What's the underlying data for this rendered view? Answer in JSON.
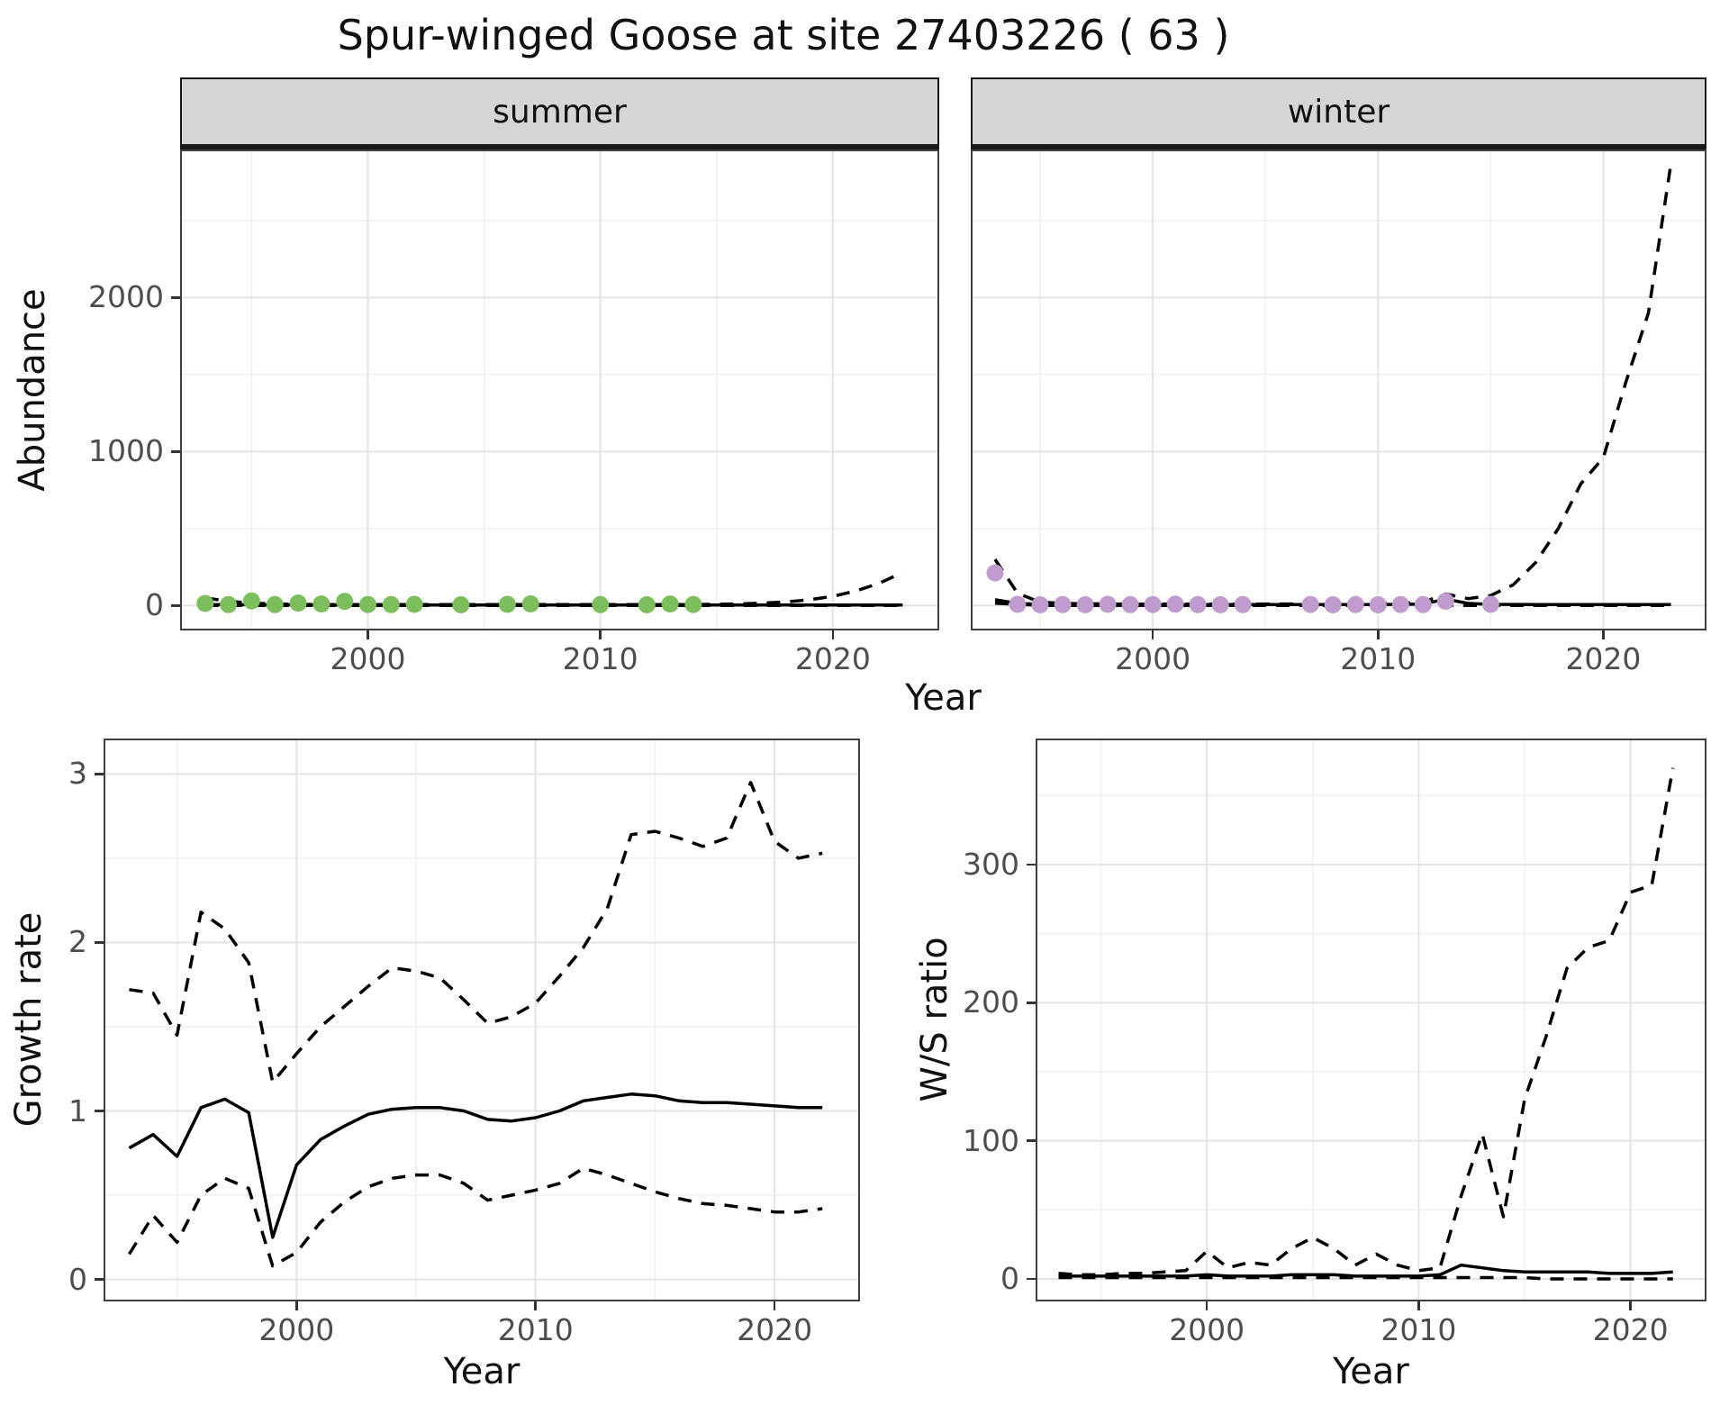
{
  "title": "Spur-winged Goose at site 27403226 ( 63 )",
  "chart_data": [
    {
      "id": "abundance-summer",
      "panel": "panel-summer",
      "type": "line",
      "facet_label": "summer",
      "xlabel": "Year",
      "ylabel": "Abundance",
      "xlim": [
        1992,
        2024.5
      ],
      "ylim": [
        -150,
        2950
      ],
      "xticks": [
        2000,
        2010,
        2020
      ],
      "yticks": [
        0,
        1000,
        2000
      ],
      "xminor": [
        1995,
        2005,
        2015
      ],
      "yminor": [
        500,
        1500,
        2500
      ],
      "show_yticklabels": true,
      "grid": true,
      "points": {
        "name": "observed-count",
        "color": "#7cbe5c",
        "x": [
          1993,
          1994,
          1995,
          1996,
          1997,
          1998,
          1999,
          2000,
          2001,
          2002,
          2004,
          2006,
          2007,
          2010,
          2012,
          2013,
          2014
        ],
        "y": [
          14,
          6,
          30,
          6,
          16,
          10,
          27,
          7,
          6,
          8,
          5,
          8,
          11,
          6,
          5,
          10,
          7
        ]
      },
      "series": [
        {
          "name": "model-fit",
          "style": "solid",
          "color": "#000000",
          "x": [
            1993,
            1998,
            2003,
            2008,
            2013,
            2018,
            2023
          ],
          "y": [
            6,
            3,
            3,
            3,
            3,
            3,
            4
          ]
        },
        {
          "name": "upper-ci",
          "style": "dashed",
          "color": "#000000",
          "x": [
            1993,
            1994,
            1995,
            1996,
            1997,
            1998,
            2000,
            2002,
            2004,
            2006,
            2008,
            2010,
            2012,
            2014,
            2015,
            2016,
            2017,
            2018,
            2019,
            2020,
            2021,
            2022,
            2023
          ],
          "y": [
            50,
            28,
            16,
            10,
            8,
            7,
            6,
            6,
            6,
            6,
            6,
            6,
            6,
            7,
            8,
            11,
            16,
            24,
            38,
            60,
            95,
            145,
            215
          ]
        },
        {
          "name": "lower-ci",
          "style": "dashed",
          "color": "#000000",
          "x": [
            1993,
            2000,
            2010,
            2020,
            2023
          ],
          "y": [
            1,
            0.5,
            0.5,
            0.5,
            0.5
          ]
        }
      ]
    },
    {
      "id": "abundance-winter",
      "panel": "panel-winter",
      "type": "line",
      "facet_label": "winter",
      "xlabel": "Year",
      "ylabel": "Abundance",
      "xlim": [
        1992,
        2024.5
      ],
      "ylim": [
        -150,
        2950
      ],
      "xticks": [
        2000,
        2010,
        2020
      ],
      "yticks": [
        0,
        1000,
        2000
      ],
      "xminor": [
        1995,
        2005,
        2015
      ],
      "yminor": [
        500,
        1500,
        2500
      ],
      "show_yticklabels": false,
      "grid": true,
      "points": {
        "name": "observed-count",
        "color": "#bf9bce",
        "x": [
          1993,
          1994,
          1995,
          1996,
          1997,
          1998,
          1999,
          2000,
          2001,
          2002,
          2003,
          2004,
          2007,
          2008,
          2009,
          2010,
          2011,
          2012,
          2013,
          2015
        ],
        "y": [
          212,
          8,
          5,
          6,
          5,
          8,
          6,
          7,
          9,
          6,
          5,
          6,
          7,
          5,
          6,
          5,
          7,
          6,
          28,
          8
        ]
      },
      "series": [
        {
          "name": "model-fit",
          "style": "solid",
          "color": "#000000",
          "x": [
            1993,
            1994,
            1995,
            1997,
            2000,
            2005,
            2010,
            2012,
            2013,
            2014,
            2015,
            2017,
            2020,
            2023
          ],
          "y": [
            38,
            14,
            8,
            6,
            6,
            6,
            7,
            9,
            42,
            14,
            8,
            6,
            6,
            6
          ]
        },
        {
          "name": "upper-ci",
          "style": "dashed",
          "color": "#000000",
          "x": [
            1993,
            1994,
            1995,
            1996,
            1998,
            2000,
            2003,
            2006,
            2009,
            2011,
            2012,
            2013,
            2014,
            2015,
            2016,
            2017,
            2018,
            2019,
            2020,
            2021,
            2022,
            2023
          ],
          "y": [
            300,
            80,
            22,
            14,
            10,
            9,
            9,
            10,
            12,
            14,
            22,
            75,
            45,
            65,
            135,
            280,
            500,
            790,
            960,
            1450,
            1900,
            2870
          ]
        },
        {
          "name": "lower-ci",
          "style": "dashed",
          "color": "#000000",
          "x": [
            1993,
            1995,
            2000,
            2010,
            2020,
            2023
          ],
          "y": [
            15,
            1,
            0.5,
            0.5,
            0.5,
            0.5
          ]
        }
      ]
    },
    {
      "id": "growth-rate",
      "panel": "panel-growth",
      "type": "line",
      "xlabel": "Year",
      "ylabel": "Growth rate",
      "xlim": [
        1992,
        2023.5
      ],
      "ylim": [
        -0.12,
        3.2
      ],
      "xticks": [
        2000,
        2010,
        2020
      ],
      "yticks": [
        0,
        1,
        2,
        3
      ],
      "xminor": [
        1995,
        2005,
        2015
      ],
      "yminor": [
        0.5,
        1.5,
        2.5
      ],
      "show_yticklabels": true,
      "grid": true,
      "series": [
        {
          "name": "median",
          "style": "solid",
          "color": "#000000",
          "x": [
            1993,
            1994,
            1995,
            1996,
            1997,
            1998,
            1999,
            2000,
            2001,
            2002,
            2003,
            2004,
            2005,
            2006,
            2007,
            2008,
            2009,
            2010,
            2011,
            2012,
            2013,
            2014,
            2015,
            2016,
            2017,
            2018,
            2019,
            2020,
            2021,
            2022
          ],
          "y": [
            0.78,
            0.86,
            0.73,
            1.02,
            1.07,
            0.99,
            0.25,
            0.68,
            0.83,
            0.91,
            0.98,
            1.01,
            1.02,
            1.02,
            1.0,
            0.95,
            0.94,
            0.96,
            1.0,
            1.06,
            1.08,
            1.1,
            1.09,
            1.06,
            1.05,
            1.05,
            1.04,
            1.03,
            1.02,
            1.02
          ]
        },
        {
          "name": "upper-ci",
          "style": "dashed",
          "color": "#000000",
          "x": [
            1993,
            1994,
            1995,
            1996,
            1997,
            1998,
            1999,
            2000,
            2001,
            2002,
            2003,
            2004,
            2005,
            2006,
            2007,
            2008,
            2009,
            2010,
            2011,
            2012,
            2013,
            2014,
            2015,
            2016,
            2017,
            2018,
            2019,
            2020,
            2021,
            2022
          ],
          "y": [
            1.72,
            1.7,
            1.45,
            2.18,
            2.08,
            1.88,
            1.17,
            1.34,
            1.5,
            1.62,
            1.74,
            1.85,
            1.83,
            1.79,
            1.66,
            1.52,
            1.56,
            1.64,
            1.8,
            1.97,
            2.2,
            2.64,
            2.66,
            2.62,
            2.57,
            2.62,
            2.95,
            2.6,
            2.5,
            2.53
          ]
        },
        {
          "name": "lower-ci",
          "style": "dashed",
          "color": "#000000",
          "x": [
            1993,
            1994,
            1995,
            1996,
            1997,
            1998,
            1999,
            2000,
            2001,
            2002,
            2003,
            2004,
            2005,
            2006,
            2007,
            2008,
            2009,
            2010,
            2011,
            2012,
            2013,
            2014,
            2015,
            2016,
            2017,
            2018,
            2019,
            2020,
            2021,
            2022
          ],
          "y": [
            0.15,
            0.38,
            0.22,
            0.5,
            0.6,
            0.54,
            0.08,
            0.16,
            0.34,
            0.46,
            0.55,
            0.6,
            0.62,
            0.62,
            0.57,
            0.47,
            0.5,
            0.53,
            0.57,
            0.66,
            0.62,
            0.57,
            0.52,
            0.48,
            0.45,
            0.44,
            0.42,
            0.4,
            0.4,
            0.42
          ]
        }
      ]
    },
    {
      "id": "ws-ratio",
      "panel": "panel-ws",
      "type": "line",
      "xlabel": "Year",
      "ylabel": "W/S ratio",
      "xlim": [
        1992,
        2023.5
      ],
      "ylim": [
        -15,
        390
      ],
      "xticks": [
        2000,
        2010,
        2020
      ],
      "yticks": [
        0,
        100,
        200,
        300
      ],
      "xminor": [
        1995,
        2005,
        2015
      ],
      "yminor": [
        50,
        150,
        250,
        350
      ],
      "show_yticklabels": true,
      "grid": true,
      "series": [
        {
          "name": "median",
          "style": "solid",
          "color": "#000000",
          "x": [
            1993,
            1994,
            1995,
            1996,
            1997,
            1998,
            1999,
            2000,
            2001,
            2002,
            2003,
            2004,
            2005,
            2006,
            2007,
            2008,
            2009,
            2010,
            2011,
            2012,
            2013,
            2014,
            2015,
            2016,
            2017,
            2018,
            2019,
            2020,
            2021,
            2022
          ],
          "y": [
            2,
            2,
            2,
            2,
            2,
            2,
            2,
            3,
            2,
            2,
            2,
            3,
            3,
            3,
            2,
            2,
            2,
            2,
            3,
            10,
            8,
            6,
            5,
            5,
            5,
            5,
            4,
            4,
            4,
            5
          ]
        },
        {
          "name": "upper-ci",
          "style": "dashed",
          "color": "#000000",
          "x": [
            1993,
            1994,
            1995,
            1996,
            1997,
            1998,
            1999,
            2000,
            2001,
            2002,
            2003,
            2004,
            2005,
            2006,
            2007,
            2008,
            2009,
            2010,
            2011,
            2012,
            2013,
            2014,
            2015,
            2016,
            2017,
            2018,
            2019,
            2020,
            2021,
            2022
          ],
          "y": [
            4,
            3,
            3,
            4,
            4,
            5,
            6,
            20,
            8,
            12,
            10,
            22,
            30,
            22,
            10,
            18,
            10,
            6,
            8,
            60,
            105,
            45,
            130,
            175,
            225,
            240,
            245,
            280,
            285,
            370
          ]
        },
        {
          "name": "lower-ci",
          "style": "dashed",
          "color": "#000000",
          "x": [
            1993,
            1994,
            1995,
            1996,
            1997,
            1998,
            1999,
            2000,
            2001,
            2002,
            2003,
            2004,
            2005,
            2006,
            2007,
            2008,
            2009,
            2010,
            2011,
            2012,
            2013,
            2014,
            2015,
            2016,
            2017,
            2018,
            2019,
            2020,
            2021,
            2022
          ],
          "y": [
            1,
            1,
            1,
            1,
            1,
            1,
            1,
            1,
            1,
            1,
            1,
            1,
            1,
            1,
            1,
            1,
            1,
            1,
            1,
            1,
            1,
            1,
            1,
            0,
            0,
            0,
            0,
            0,
            0,
            0
          ]
        }
      ]
    }
  ]
}
